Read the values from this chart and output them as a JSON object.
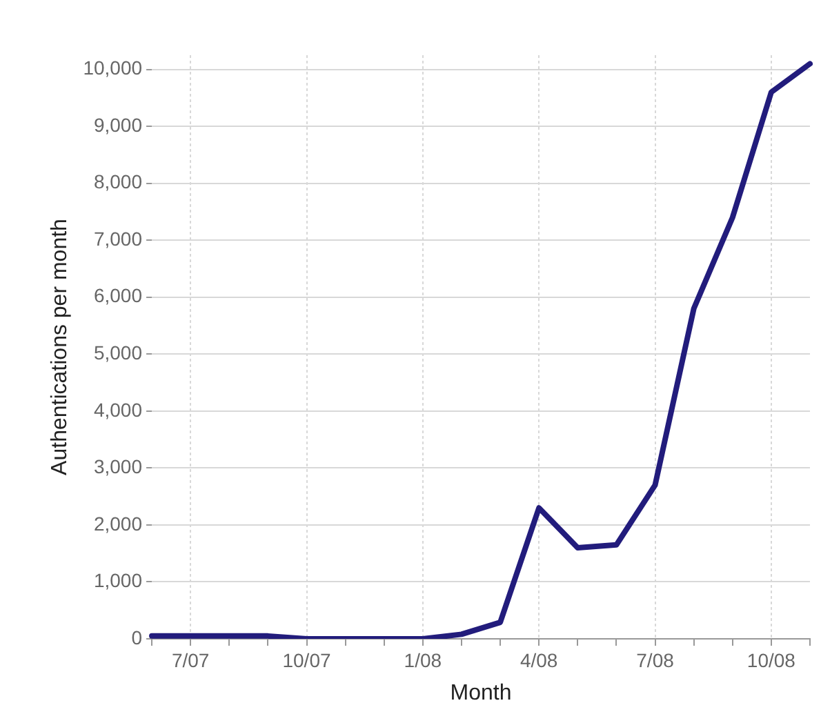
{
  "chart_data": {
    "type": "line",
    "xlabel": "Month",
    "ylabel": "Authentications per month",
    "categories": [
      null,
      "7/07",
      null,
      null,
      "10/07",
      null,
      null,
      "1/08",
      null,
      null,
      "4/08",
      null,
      null,
      "7/08",
      null,
      null,
      "10/08",
      null
    ],
    "series": [
      {
        "color": "#221c7c",
        "values": [
          50,
          50,
          50,
          50,
          0,
          0,
          0,
          0,
          80,
          290,
          2300,
          1600,
          1650,
          2700,
          5800,
          7400,
          9600,
          10100
        ]
      }
    ],
    "ylim": [
      0,
      10250
    ],
    "yticks": [
      {
        "value": 0,
        "label": "0"
      },
      {
        "value": 1000,
        "label": "1,000"
      },
      {
        "value": 2000,
        "label": "2,000"
      },
      {
        "value": 3000,
        "label": "3,000"
      },
      {
        "value": 4000,
        "label": "4,000"
      },
      {
        "value": 5000,
        "label": "5,000"
      },
      {
        "value": 6000,
        "label": "6,000"
      },
      {
        "value": 7000,
        "label": "7,000"
      },
      {
        "value": 8000,
        "label": "8,000"
      },
      {
        "value": 9000,
        "label": "9,000"
      },
      {
        "value": 10000,
        "label": "10,000"
      }
    ],
    "grid": true,
    "legend": false,
    "marker": "none",
    "line_style": "solid"
  }
}
